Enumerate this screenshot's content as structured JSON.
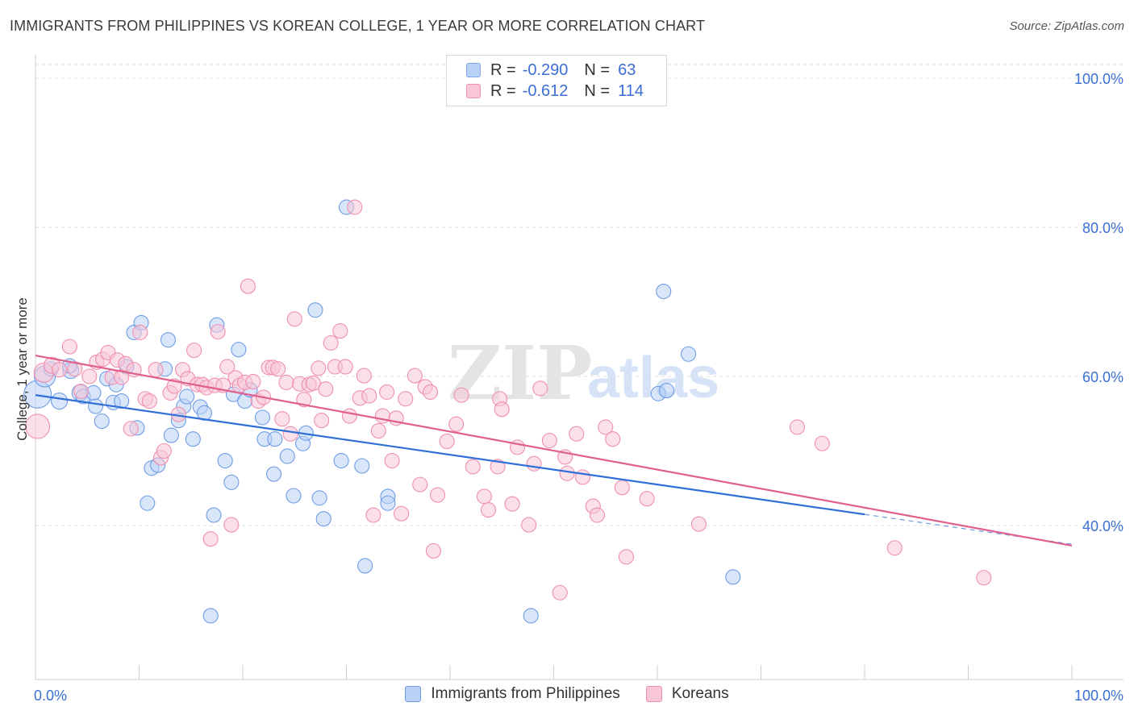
{
  "title": "IMMIGRANTS FROM PHILIPPINES VS KOREAN COLLEGE, 1 YEAR OR MORE CORRELATION CHART",
  "source": "Source: ZipAtlas.com",
  "watermark": {
    "zip": "ZIP",
    "atlas": "atlas"
  },
  "legend_top": {
    "rows": [
      {
        "r_label": "R =",
        "r_value": "-0.290",
        "n_label": "N =",
        "n_value": "63",
        "color": "#7ea6e8",
        "fill": "#b9d1f5"
      },
      {
        "r_label": "R =",
        "r_value": "-0.612",
        "n_label": "N =",
        "n_value": "114",
        "color": "#ef93b4",
        "fill": "#f8c6d7"
      }
    ]
  },
  "chart_data": {
    "type": "scatter",
    "title": "IMMIGRANTS FROM PHILIPPINES VS KOREAN COLLEGE, 1 YEAR OR MORE CORRELATION CHART",
    "xlabel": "",
    "ylabel": "College, 1 year or more",
    "xlim": [
      0,
      100
    ],
    "ylim": [
      22,
      102
    ],
    "x_tick_labels": [
      "0.0%",
      "100.0%"
    ],
    "y_ticks": [
      40,
      60,
      80,
      100
    ],
    "y_tick_labels": [
      "40.0%",
      "60.0%",
      "80.0%",
      "100.0%"
    ],
    "grid": true,
    "legend_position": "bottom",
    "series": [
      {
        "name": "Immigrants from Philippines",
        "color": "#6f9de6",
        "fill": "#b9d1f5",
        "trend": {
          "x0": 0,
          "y0": 57.5,
          "x1": 80,
          "y1": 41.5,
          "dashed_to_x": 100,
          "dashed_to_y": 37.5,
          "color": "#2f6fd6"
        },
        "points": [
          [
            0.2,
            57.6,
            16
          ],
          [
            0.9,
            60.0,
            12
          ],
          [
            1.5,
            61.0,
            8
          ],
          [
            2.3,
            56.7,
            9
          ],
          [
            3.4,
            60.8,
            9
          ],
          [
            3.3,
            61.4,
            8
          ],
          [
            4.3,
            57.8,
            9
          ],
          [
            4.6,
            57.3,
            8
          ],
          [
            5.6,
            57.8,
            8
          ],
          [
            5.8,
            56.0,
            8
          ],
          [
            6.4,
            54.0,
            8
          ],
          [
            6.9,
            59.7,
            8
          ],
          [
            7.5,
            56.5,
            8
          ],
          [
            7.8,
            58.9,
            8
          ],
          [
            8.3,
            56.7,
            8
          ],
          [
            8.8,
            61.3,
            8
          ],
          [
            9.5,
            65.9,
            8
          ],
          [
            9.8,
            53.1,
            8
          ],
          [
            10.2,
            67.2,
            8
          ],
          [
            10.8,
            43.0,
            8
          ],
          [
            11.2,
            47.7,
            8
          ],
          [
            11.8,
            48.1,
            8
          ],
          [
            12.5,
            61.0,
            8
          ],
          [
            12.8,
            64.9,
            8
          ],
          [
            13.1,
            52.1,
            8
          ],
          [
            13.8,
            54.1,
            8
          ],
          [
            14.3,
            56.0,
            8
          ],
          [
            14.6,
            57.3,
            8
          ],
          [
            15.2,
            51.6,
            8
          ],
          [
            15.9,
            55.9,
            8
          ],
          [
            16.3,
            55.1,
            8
          ],
          [
            16.9,
            27.9,
            8
          ],
          [
            17.2,
            41.4,
            8
          ],
          [
            17.5,
            66.9,
            8
          ],
          [
            18.3,
            48.7,
            8
          ],
          [
            18.9,
            45.8,
            8
          ],
          [
            19.1,
            57.6,
            8
          ],
          [
            19.6,
            63.6,
            8
          ],
          [
            20.2,
            56.7,
            8
          ],
          [
            20.7,
            58.2,
            8
          ],
          [
            21.9,
            54.5,
            8
          ],
          [
            22.1,
            51.6,
            8
          ],
          [
            23.1,
            51.6,
            8
          ],
          [
            23.0,
            46.9,
            8
          ],
          [
            24.3,
            49.3,
            8
          ],
          [
            24.9,
            44.0,
            8
          ],
          [
            25.8,
            51.0,
            8
          ],
          [
            26.1,
            52.4,
            8
          ],
          [
            27.0,
            68.9,
            8
          ],
          [
            27.4,
            43.7,
            8
          ],
          [
            27.8,
            40.9,
            8
          ],
          [
            29.5,
            48.7,
            8
          ],
          [
            30.0,
            82.7,
            8
          ],
          [
            31.5,
            48.0,
            8
          ],
          [
            31.8,
            34.6,
            8
          ],
          [
            34.0,
            43.9,
            8
          ],
          [
            34.0,
            43.0,
            8
          ],
          [
            47.8,
            27.9,
            8
          ],
          [
            60.1,
            57.7,
            8
          ],
          [
            60.9,
            58.1,
            8
          ],
          [
            60.6,
            71.4,
            8
          ],
          [
            63.0,
            63.0,
            8
          ],
          [
            67.3,
            33.1,
            8
          ]
        ]
      },
      {
        "name": "Koreans",
        "color": "#ef8fb0",
        "fill": "#f8c6d7",
        "trend": {
          "x0": 0,
          "y0": 62.8,
          "x1": 100,
          "y1": 37.3,
          "color": "#e0608c"
        },
        "points": [
          [
            0.2,
            53.3,
            14
          ],
          [
            0.8,
            60.5,
            11
          ],
          [
            1.6,
            61.5,
            9
          ],
          [
            2.3,
            60.9,
            8
          ],
          [
            3.3,
            64.0,
            8
          ],
          [
            3.8,
            61.0,
            8
          ],
          [
            4.4,
            58.0,
            8
          ],
          [
            5.2,
            60.0,
            8
          ],
          [
            5.9,
            61.9,
            8
          ],
          [
            6.5,
            62.3,
            8
          ],
          [
            7.0,
            63.2,
            8
          ],
          [
            7.4,
            59.9,
            8
          ],
          [
            7.9,
            62.2,
            8
          ],
          [
            8.3,
            59.9,
            8
          ],
          [
            8.7,
            61.7,
            8
          ],
          [
            9.2,
            53.0,
            8
          ],
          [
            9.5,
            60.9,
            8
          ],
          [
            10.1,
            65.9,
            8
          ],
          [
            10.6,
            57.0,
            8
          ],
          [
            11.0,
            56.7,
            8
          ],
          [
            11.6,
            60.9,
            8
          ],
          [
            12.1,
            49.1,
            8
          ],
          [
            12.4,
            50.0,
            8
          ],
          [
            13.0,
            57.8,
            8
          ],
          [
            13.4,
            58.7,
            8
          ],
          [
            13.8,
            54.9,
            8
          ],
          [
            14.2,
            60.9,
            8
          ],
          [
            14.7,
            59.7,
            8
          ],
          [
            15.3,
            63.5,
            8
          ],
          [
            15.6,
            58.9,
            8
          ],
          [
            16.1,
            58.9,
            8
          ],
          [
            16.5,
            58.5,
            8
          ],
          [
            16.9,
            38.2,
            8
          ],
          [
            17.3,
            58.8,
            8
          ],
          [
            17.6,
            66.0,
            8
          ],
          [
            18.1,
            58.8,
            8
          ],
          [
            18.5,
            61.3,
            8
          ],
          [
            18.9,
            40.1,
            8
          ],
          [
            19.3,
            59.8,
            8
          ],
          [
            19.7,
            58.8,
            8
          ],
          [
            20.2,
            59.2,
            8
          ],
          [
            20.5,
            72.1,
            8
          ],
          [
            21.0,
            59.3,
            8
          ],
          [
            21.5,
            56.7,
            8
          ],
          [
            22.0,
            57.2,
            8
          ],
          [
            22.5,
            61.2,
            8
          ],
          [
            22.9,
            61.2,
            8
          ],
          [
            23.4,
            61.0,
            8
          ],
          [
            23.8,
            54.3,
            8
          ],
          [
            24.2,
            59.2,
            8
          ],
          [
            24.6,
            52.3,
            8
          ],
          [
            25.0,
            67.7,
            8
          ],
          [
            25.5,
            59.0,
            8
          ],
          [
            25.9,
            56.9,
            8
          ],
          [
            26.4,
            58.9,
            8
          ],
          [
            26.8,
            59.1,
            8
          ],
          [
            27.3,
            61.1,
            8
          ],
          [
            27.6,
            54.1,
            8
          ],
          [
            28.0,
            58.3,
            8
          ],
          [
            28.5,
            64.5,
            8
          ],
          [
            28.9,
            61.3,
            8
          ],
          [
            29.4,
            66.1,
            8
          ],
          [
            29.9,
            61.3,
            8
          ],
          [
            30.3,
            54.7,
            8
          ],
          [
            30.8,
            82.7,
            8
          ],
          [
            31.3,
            57.1,
            8
          ],
          [
            31.7,
            60.1,
            8
          ],
          [
            32.2,
            57.4,
            8
          ],
          [
            32.6,
            41.4,
            8
          ],
          [
            33.1,
            52.7,
            8
          ],
          [
            33.5,
            54.7,
            8
          ],
          [
            33.9,
            57.9,
            8
          ],
          [
            34.4,
            48.7,
            8
          ],
          [
            34.8,
            54.4,
            8
          ],
          [
            35.3,
            41.6,
            8
          ],
          [
            35.7,
            57.0,
            8
          ],
          [
            36.6,
            60.1,
            8
          ],
          [
            37.1,
            45.5,
            8
          ],
          [
            37.6,
            58.6,
            8
          ],
          [
            38.1,
            57.9,
            8
          ],
          [
            38.4,
            36.6,
            8
          ],
          [
            38.8,
            44.1,
            8
          ],
          [
            39.7,
            51.3,
            8
          ],
          [
            40.6,
            53.6,
            8
          ],
          [
            41.1,
            57.5,
            8
          ],
          [
            42.2,
            47.9,
            8
          ],
          [
            43.3,
            43.9,
            8
          ],
          [
            43.7,
            42.1,
            8
          ],
          [
            44.6,
            47.9,
            8
          ],
          [
            44.8,
            57.0,
            8
          ],
          [
            45.0,
            55.6,
            8
          ],
          [
            46.0,
            42.9,
            8
          ],
          [
            46.5,
            50.5,
            8
          ],
          [
            47.6,
            40.1,
            8
          ],
          [
            48.1,
            48.3,
            8
          ],
          [
            48.7,
            58.4,
            8
          ],
          [
            49.6,
            51.4,
            8
          ],
          [
            50.6,
            31.0,
            8
          ],
          [
            51.1,
            49.2,
            8
          ],
          [
            51.3,
            47.0,
            8
          ],
          [
            52.2,
            52.3,
            8
          ],
          [
            52.8,
            46.5,
            8
          ],
          [
            53.8,
            42.6,
            8
          ],
          [
            54.2,
            41.4,
            8
          ],
          [
            55.0,
            53.2,
            8
          ],
          [
            55.7,
            51.6,
            8
          ],
          [
            56.6,
            45.1,
            8
          ],
          [
            57.0,
            35.8,
            8
          ],
          [
            59.0,
            43.6,
            8
          ],
          [
            64.0,
            40.2,
            8
          ],
          [
            73.5,
            53.2,
            8
          ],
          [
            75.9,
            51.0,
            8
          ],
          [
            82.9,
            37.0,
            8
          ],
          [
            91.5,
            33.0,
            8
          ]
        ]
      }
    ]
  }
}
